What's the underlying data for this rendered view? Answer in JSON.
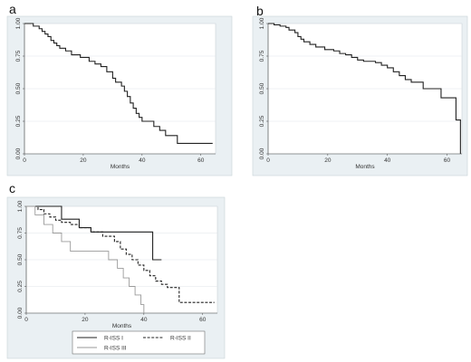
{
  "chart_data": [
    {
      "panel": "a",
      "type": "line",
      "xlabel": "Months",
      "ylabel": "",
      "xlim": [
        0,
        65
      ],
      "ylim": [
        0,
        1
      ],
      "xticks": [
        "0",
        "20",
        "40",
        "60"
      ],
      "yticks": [
        "0.00",
        "0.25",
        "0.50",
        "0.75",
        "1.00"
      ],
      "grid": true,
      "series": [
        {
          "style": "solid",
          "color": "#222222",
          "x": [
            0,
            3,
            5,
            6,
            7,
            8,
            9,
            10,
            11,
            12,
            14,
            16,
            19,
            22,
            24,
            26,
            28,
            30,
            31,
            33,
            34,
            35,
            36,
            37,
            38,
            39,
            40,
            42,
            44,
            46,
            48,
            52,
            64
          ],
          "y": [
            1.0,
            0.98,
            0.96,
            0.94,
            0.92,
            0.9,
            0.87,
            0.85,
            0.83,
            0.81,
            0.79,
            0.76,
            0.74,
            0.71,
            0.69,
            0.67,
            0.63,
            0.58,
            0.55,
            0.52,
            0.48,
            0.44,
            0.39,
            0.35,
            0.31,
            0.28,
            0.25,
            0.25,
            0.21,
            0.18,
            0.14,
            0.08,
            0.08
          ]
        }
      ]
    },
    {
      "panel": "b",
      "type": "line",
      "xlabel": "Months",
      "ylabel": "",
      "xlim": [
        0,
        65
      ],
      "ylim": [
        0,
        1
      ],
      "xticks": [
        "0",
        "20",
        "40",
        "60"
      ],
      "yticks": [
        "0.00",
        "0.25",
        "0.50",
        "0.75",
        "1.00"
      ],
      "grid": true,
      "series": [
        {
          "style": "solid",
          "color": "#222222",
          "x": [
            0,
            2,
            4,
            6,
            7,
            9,
            10,
            11,
            12,
            14,
            16,
            19,
            22,
            24,
            26,
            28,
            30,
            32,
            34,
            36,
            38,
            40,
            42,
            44,
            46,
            48,
            52,
            58,
            63,
            64.5
          ],
          "y": [
            1.0,
            0.99,
            0.98,
            0.97,
            0.95,
            0.93,
            0.9,
            0.88,
            0.86,
            0.84,
            0.82,
            0.8,
            0.79,
            0.77,
            0.76,
            0.74,
            0.72,
            0.71,
            0.71,
            0.7,
            0.68,
            0.66,
            0.63,
            0.6,
            0.57,
            0.55,
            0.5,
            0.43,
            0.26,
            0.0
          ]
        }
      ]
    },
    {
      "panel": "c",
      "type": "line",
      "xlabel": "Months",
      "ylabel": "",
      "xlim": [
        0,
        65
      ],
      "ylim": [
        0,
        1
      ],
      "xticks": [
        "0",
        "20",
        "40",
        "60"
      ],
      "yticks": [
        "0.00",
        "0.25",
        "0.50",
        "0.75",
        "1.00"
      ],
      "grid": true,
      "legend": "bottom",
      "series": [
        {
          "name": "R-ISS I",
          "style": "solid",
          "color": "#222222",
          "x": [
            0,
            12,
            18,
            22,
            26,
            43,
            46
          ],
          "y": [
            1.0,
            0.88,
            0.8,
            0.76,
            0.76,
            0.5,
            0.5
          ]
        },
        {
          "name": "R-ISS II",
          "style": "dashed",
          "color": "#222222",
          "x": [
            0,
            4,
            6,
            8,
            10,
            12,
            15,
            18,
            22,
            26,
            30,
            32,
            34,
            36,
            38,
            40,
            42,
            44,
            46,
            48,
            52,
            64
          ],
          "y": [
            1.0,
            0.97,
            0.93,
            0.9,
            0.87,
            0.85,
            0.83,
            0.8,
            0.76,
            0.72,
            0.67,
            0.6,
            0.55,
            0.5,
            0.45,
            0.4,
            0.35,
            0.3,
            0.27,
            0.24,
            0.1,
            0.1
          ]
        },
        {
          "name": "R-ISS III",
          "style": "solid",
          "color": "#9a9a9a",
          "x": [
            0,
            3,
            6,
            9,
            12,
            15,
            24,
            28,
            31,
            33,
            35,
            37,
            39,
            40
          ],
          "y": [
            1.0,
            0.92,
            0.83,
            0.75,
            0.67,
            0.58,
            0.58,
            0.5,
            0.42,
            0.33,
            0.25,
            0.17,
            0.08,
            0.0
          ]
        }
      ]
    }
  ],
  "panels": {
    "a": "a",
    "b": "b",
    "c": "c"
  },
  "colors": {
    "frame_bg": "#eaf0f3",
    "plot_bg": "#ffffff",
    "grid": "#dfe6ea",
    "axis": "#444444"
  }
}
